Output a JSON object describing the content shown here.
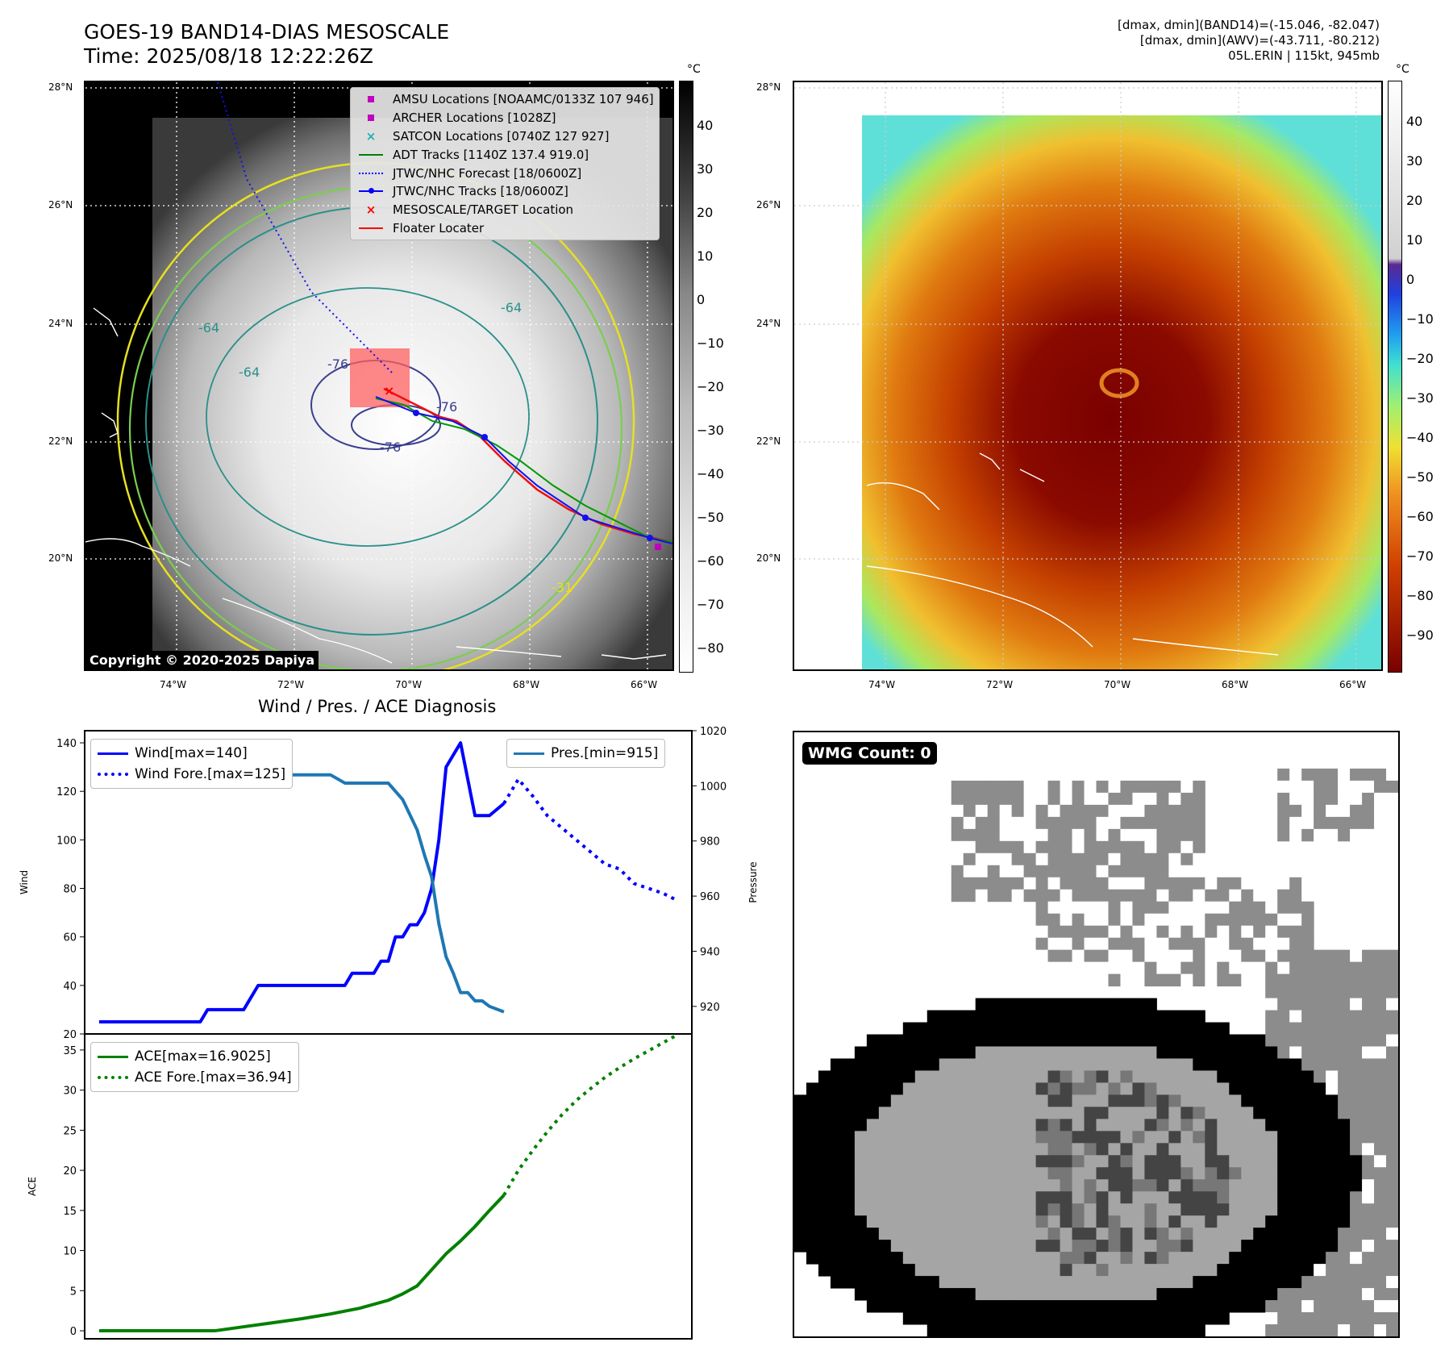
{
  "header": {
    "title_line1": "GOES-19 BAND14-DIAS MESOSCALE",
    "title_line2": "Time: 2025/08/18 12:22:26Z",
    "info_line1": "[dmax, dmin](BAND14)=(-15.046, -82.047)",
    "info_line2": "[dmax, dmin](AWV)=(-43.711, -80.212)",
    "info_line3": "05L.ERIN | 115kt, 945mb"
  },
  "map": {
    "lat_labels": [
      "28°N",
      "26°N",
      "24°N",
      "22°N",
      "20°N"
    ],
    "lon_labels": [
      "74°W",
      "72°W",
      "70°W",
      "68°W",
      "66°W"
    ],
    "copyright": "Copyright © 2020-2025 Dapiya",
    "contour_labels": [
      "-64",
      "-64",
      "-76",
      "-76",
      "-64",
      "-76",
      "-31"
    ],
    "legend": [
      {
        "label": "AMSU Locations [NOAAMC/0133Z 107 946]",
        "marker": "square",
        "color": "#c000c0"
      },
      {
        "label": "ARCHER Locations [1028Z]",
        "marker": "square",
        "color": "#c000c0"
      },
      {
        "label": "SATCON Locations [0740Z 127 927]",
        "marker": "x",
        "color": "#20b0b0"
      },
      {
        "label": "ADT Tracks [1140Z 137.4 919.0]",
        "marker": "line",
        "color": "#008000"
      },
      {
        "label": "JTWC/NHC Forecast [18/0600Z]",
        "marker": "dotted",
        "color": "#0000ff"
      },
      {
        "label": "JTWC/NHC Tracks [18/0600Z]",
        "marker": "line-dot",
        "color": "#0000ff"
      },
      {
        "label": "MESOSCALE/TARGET Location",
        "marker": "x",
        "color": "#ff0000"
      },
      {
        "label": "Floater Locater",
        "marker": "line",
        "color": "#ff0000"
      }
    ]
  },
  "colorbar_left": {
    "unit": "°C",
    "ticks": [
      "40",
      "30",
      "20",
      "10",
      "0",
      "−10",
      "−20",
      "−30",
      "−40",
      "−50",
      "−60",
      "−70",
      "−80"
    ]
  },
  "colorbar_right": {
    "unit": "°C",
    "ticks": [
      "40",
      "30",
      "20",
      "10",
      "0",
      "−10",
      "−20",
      "−30",
      "−40",
      "−50",
      "−60",
      "−70",
      "−80",
      "−90"
    ]
  },
  "diagnosis": {
    "title": "Wind / Pres. / ACE Diagnosis"
  },
  "wmg": {
    "label": "WMG Count: 0"
  },
  "chart_data": [
    {
      "type": "line",
      "title": "Wind / Pres. / ACE Diagnosis",
      "ylabel": "Wind",
      "ylabel_right": "Pressure",
      "ylim": [
        20,
        145
      ],
      "ylim_right": [
        910,
        1020
      ],
      "yticks": [
        20,
        40,
        60,
        80,
        100,
        120,
        140
      ],
      "yticks_right": [
        920,
        940,
        960,
        980,
        1000,
        1020
      ],
      "legend_left": [
        "Wind[max=140]",
        "Wind Fore.[max=125]"
      ],
      "legend_right": [
        "Pres.[min=915]"
      ],
      "series": [
        {
          "name": "Wind[max=140]",
          "axis": "left",
          "style": "solid",
          "color": "#0000ff",
          "x": [
            0,
            2,
            3,
            4,
            5,
            6,
            7,
            7.5,
            8,
            9,
            10,
            11,
            12,
            13,
            14,
            15,
            16,
            17,
            17.5,
            18,
            18.5,
            19,
            19.5,
            20,
            20.5,
            21,
            21.5,
            22,
            22.5,
            23,
            23.5,
            24,
            25,
            26,
            27,
            28
          ],
          "y": [
            25,
            25,
            25,
            25,
            25,
            25,
            25,
            30,
            30,
            30,
            30,
            40,
            40,
            40,
            40,
            40,
            40,
            40,
            45,
            45,
            45,
            45,
            50,
            50,
            60,
            60,
            65,
            65,
            70,
            80,
            100,
            130,
            140,
            110,
            110,
            115
          ]
        },
        {
          "name": "Wind Fore.[max=125]",
          "axis": "left",
          "style": "dotted",
          "color": "#0000ff",
          "x": [
            28,
            29,
            30,
            31,
            32,
            33,
            34,
            35,
            36,
            37,
            38,
            39,
            40
          ],
          "y": [
            115,
            125,
            118,
            110,
            105,
            100,
            95,
            90,
            88,
            82,
            80,
            78,
            75
          ]
        },
        {
          "name": "Pres.[min=915]",
          "axis": "right",
          "style": "solid",
          "color": "#1f77b4",
          "x": [
            0,
            0.6,
            1,
            2,
            3,
            4,
            5,
            6,
            7,
            8,
            9,
            10,
            11,
            12,
            13,
            14,
            15,
            16,
            17,
            18,
            19,
            20,
            21,
            22,
            22.5,
            23,
            23.5,
            24,
            24.5,
            25,
            25.5,
            26,
            26.5,
            27,
            28
          ],
          "y": [
            1015,
            1015,
            1010,
            1008,
            1008,
            1008,
            1006,
            1006,
            1006,
            1006,
            1006,
            1008,
            1008,
            1004,
            1004,
            1004,
            1004,
            1004,
            1001,
            1001,
            1001,
            1001,
            995,
            984,
            975,
            967,
            950,
            938,
            932,
            925,
            925,
            922,
            922,
            920,
            918
          ]
        }
      ],
      "x_domain": [
        -1,
        41
      ]
    },
    {
      "type": "line",
      "ylabel": "ACE",
      "ylim": [
        -1,
        37
      ],
      "yticks": [
        0,
        5,
        10,
        15,
        20,
        25,
        30,
        35
      ],
      "legend": [
        "ACE[max=16.9025]",
        "ACE Fore.[max=36.94]"
      ],
      "series": [
        {
          "name": "ACE[max=16.9025]",
          "style": "solid",
          "color": "#008000",
          "x": [
            0,
            2,
            4,
            6,
            8,
            10,
            12,
            14,
            16,
            18,
            20,
            21,
            22,
            23,
            24,
            25,
            26,
            27,
            28
          ],
          "y": [
            0,
            0,
            0,
            0,
            0,
            0.5,
            1.0,
            1.5,
            2.1,
            2.8,
            3.8,
            4.6,
            5.6,
            7.6,
            9.6,
            11.2,
            13.0,
            15.0,
            16.9
          ]
        },
        {
          "name": "ACE Fore.[max=36.94]",
          "style": "dotted",
          "color": "#008000",
          "x": [
            28,
            29,
            30,
            31,
            32,
            33,
            34,
            35,
            36,
            37,
            38,
            39,
            40
          ],
          "y": [
            16.9,
            20,
            22.5,
            24.8,
            26.9,
            28.7,
            30.2,
            31.6,
            32.8,
            33.9,
            34.9,
            35.9,
            36.9
          ]
        }
      ],
      "x_domain": [
        -1,
        41
      ]
    }
  ]
}
